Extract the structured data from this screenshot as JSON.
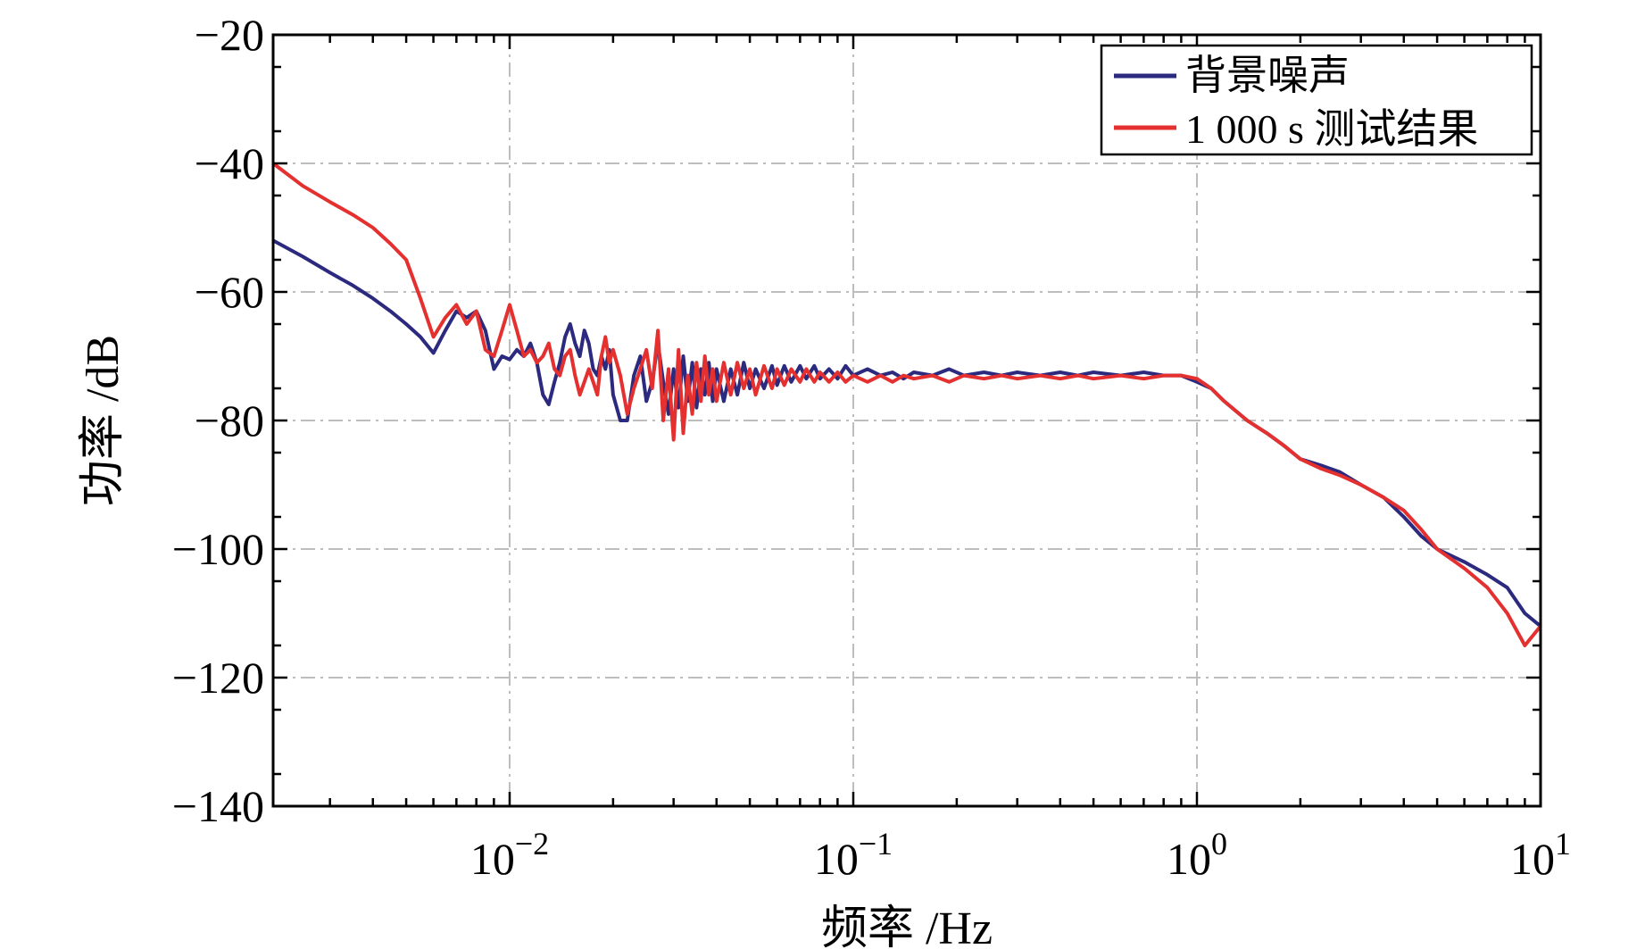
{
  "chart_data": {
    "type": "line",
    "title": "",
    "xlabel": "频率 /Hz",
    "ylabel": "功率 /dB",
    "xscale": "log",
    "xlim": [
      0.00205,
      10
    ],
    "ylim": [
      -140,
      -20
    ],
    "grid": true,
    "legend_position": "top-right",
    "x_ticks": [
      {
        "value": 0.01,
        "base": "10",
        "exp": "−2"
      },
      {
        "value": 0.1,
        "base": "10",
        "exp": "−1"
      },
      {
        "value": 1,
        "base": "10",
        "exp": "0"
      },
      {
        "value": 10,
        "base": "10",
        "exp": "1"
      }
    ],
    "y_ticks": [
      {
        "value": -20,
        "label": "−20"
      },
      {
        "value": -40,
        "label": "−40"
      },
      {
        "value": -60,
        "label": "−60"
      },
      {
        "value": -80,
        "label": "−80"
      },
      {
        "value": -100,
        "label": "−100"
      },
      {
        "value": -120,
        "label": "−120"
      },
      {
        "value": -140,
        "label": "−140"
      }
    ],
    "series": [
      {
        "name": "背景噪声",
        "color": "#2b2a7e",
        "x": [
          0.00205,
          0.0025,
          0.003,
          0.0035,
          0.004,
          0.0045,
          0.005,
          0.0055,
          0.006,
          0.0065,
          0.007,
          0.0075,
          0.008,
          0.0085,
          0.009,
          0.0095,
          0.01,
          0.0105,
          0.011,
          0.0115,
          0.012,
          0.0125,
          0.013,
          0.0135,
          0.014,
          0.0145,
          0.015,
          0.0155,
          0.016,
          0.0165,
          0.017,
          0.0175,
          0.018,
          0.0185,
          0.019,
          0.0195,
          0.02,
          0.021,
          0.022,
          0.023,
          0.024,
          0.025,
          0.026,
          0.027,
          0.028,
          0.029,
          0.03,
          0.031,
          0.032,
          0.033,
          0.034,
          0.035,
          0.036,
          0.037,
          0.038,
          0.039,
          0.04,
          0.042,
          0.044,
          0.046,
          0.048,
          0.05,
          0.052,
          0.055,
          0.058,
          0.06,
          0.063,
          0.066,
          0.07,
          0.073,
          0.077,
          0.08,
          0.085,
          0.09,
          0.095,
          0.1,
          0.11,
          0.12,
          0.13,
          0.14,
          0.15,
          0.17,
          0.19,
          0.21,
          0.24,
          0.27,
          0.3,
          0.35,
          0.4,
          0.45,
          0.5,
          0.6,
          0.7,
          0.8,
          0.9,
          1.0,
          1.1,
          1.2,
          1.4,
          1.6,
          1.8,
          2.0,
          2.3,
          2.6,
          3.0,
          3.5,
          4.0,
          4.5,
          5.0,
          6.0,
          7.0,
          8.0,
          9.0,
          10.0
        ],
        "y": [
          -52,
          -54.5,
          -57,
          -59,
          -61,
          -63,
          -65,
          -67,
          -69.5,
          -66,
          -63,
          -64,
          -63,
          -66,
          -72,
          -70,
          -70.5,
          -69,
          -70,
          -68,
          -71,
          -76,
          -77.5,
          -74,
          -71,
          -67,
          -65,
          -68,
          -70,
          -66,
          -68,
          -72,
          -73,
          -70,
          -72,
          -69,
          -76,
          -80,
          -80,
          -73,
          -70,
          -77,
          -74,
          -68,
          -74,
          -79,
          -72,
          -78,
          -70,
          -77,
          -71,
          -78,
          -72,
          -76,
          -71,
          -77,
          -72,
          -77,
          -72,
          -76,
          -71,
          -75,
          -72,
          -75,
          -71.5,
          -74.5,
          -71.5,
          -74,
          -71.5,
          -73.5,
          -71.5,
          -73.5,
          -72,
          -73.5,
          -71.5,
          -73,
          -72,
          -73,
          -72.5,
          -73.5,
          -72.5,
          -73,
          -72,
          -73,
          -72.5,
          -73,
          -72.5,
          -73,
          -72.5,
          -73,
          -72.5,
          -73,
          -72.5,
          -73,
          -73,
          -74,
          -75,
          -77,
          -80,
          -82,
          -84,
          -86,
          -87,
          -88,
          -90,
          -92,
          -95,
          -98,
          -100,
          -102,
          -104,
          -106,
          -110,
          -112
        ]
      },
      {
        "name": "1 000 s 测试结果",
        "color": "#e53030",
        "x": [
          0.00205,
          0.0025,
          0.003,
          0.0035,
          0.004,
          0.0045,
          0.005,
          0.0055,
          0.006,
          0.0065,
          0.007,
          0.0075,
          0.008,
          0.0085,
          0.009,
          0.0095,
          0.01,
          0.0105,
          0.011,
          0.0115,
          0.012,
          0.0125,
          0.013,
          0.0135,
          0.014,
          0.0145,
          0.015,
          0.0155,
          0.016,
          0.0165,
          0.017,
          0.0175,
          0.018,
          0.0185,
          0.019,
          0.0195,
          0.02,
          0.021,
          0.022,
          0.023,
          0.024,
          0.025,
          0.026,
          0.027,
          0.028,
          0.029,
          0.03,
          0.031,
          0.032,
          0.033,
          0.034,
          0.035,
          0.036,
          0.037,
          0.038,
          0.039,
          0.04,
          0.042,
          0.044,
          0.046,
          0.048,
          0.05,
          0.052,
          0.055,
          0.058,
          0.06,
          0.063,
          0.066,
          0.07,
          0.073,
          0.077,
          0.08,
          0.085,
          0.09,
          0.095,
          0.1,
          0.11,
          0.12,
          0.13,
          0.14,
          0.15,
          0.17,
          0.19,
          0.21,
          0.24,
          0.27,
          0.3,
          0.35,
          0.4,
          0.45,
          0.5,
          0.6,
          0.7,
          0.8,
          0.9,
          1.0,
          1.1,
          1.2,
          1.4,
          1.6,
          1.8,
          2.0,
          2.3,
          2.6,
          3.0,
          3.5,
          4.0,
          4.5,
          5.0,
          6.0,
          7.0,
          8.0,
          9.0,
          10.0
        ],
        "y": [
          -40,
          -43.5,
          -46,
          -48,
          -50,
          -52.5,
          -55,
          -61,
          -67,
          -64,
          -62,
          -65,
          -63,
          -69,
          -70,
          -66,
          -62,
          -66,
          -70,
          -69,
          -71,
          -70,
          -68,
          -72,
          -73,
          -70,
          -69,
          -73,
          -76,
          -74,
          -72,
          -74,
          -76,
          -70,
          -67,
          -71,
          -69,
          -73,
          -79,
          -75,
          -72,
          -69,
          -75,
          -66,
          -80,
          -72,
          -83,
          -69,
          -82,
          -73,
          -79,
          -71,
          -77,
          -70,
          -76,
          -72,
          -77,
          -71,
          -76,
          -71,
          -75,
          -72,
          -76,
          -71.5,
          -75,
          -72,
          -74.5,
          -72,
          -74,
          -72,
          -74,
          -72.5,
          -74,
          -72.5,
          -74,
          -73,
          -74,
          -73,
          -74,
          -73,
          -73.5,
          -73,
          -74,
          -73,
          -73.5,
          -73,
          -73.5,
          -73,
          -73.5,
          -73,
          -73.5,
          -73,
          -73.5,
          -73,
          -73,
          -73.5,
          -75,
          -77,
          -80,
          -82,
          -84,
          -86,
          -87.5,
          -88.5,
          -90,
          -92,
          -94,
          -97,
          -100,
          -103,
          -106,
          -110,
          -115,
          -112
        ]
      }
    ]
  }
}
